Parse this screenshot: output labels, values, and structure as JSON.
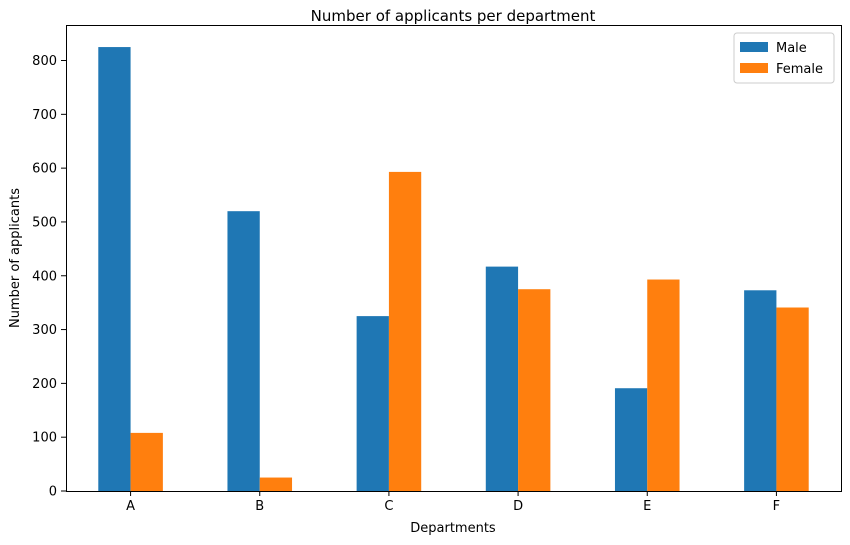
{
  "chart_data": {
    "type": "bar",
    "title": "Number of applicants per department",
    "xlabel": "Departments",
    "ylabel": "Number of applicants",
    "categories": [
      "A",
      "B",
      "C",
      "D",
      "E",
      "F"
    ],
    "series": [
      {
        "name": "Male",
        "color": "#1f77b4",
        "values": [
          825,
          520,
          325,
          417,
          191,
          373
        ]
      },
      {
        "name": "Female",
        "color": "#ff7f0e",
        "values": [
          108,
          25,
          593,
          375,
          393,
          341
        ]
      }
    ],
    "ylim": [
      0,
      866
    ],
    "yticks": [
      0,
      100,
      200,
      300,
      400,
      500,
      600,
      700,
      800
    ],
    "grid": false,
    "legend": "top-right"
  }
}
